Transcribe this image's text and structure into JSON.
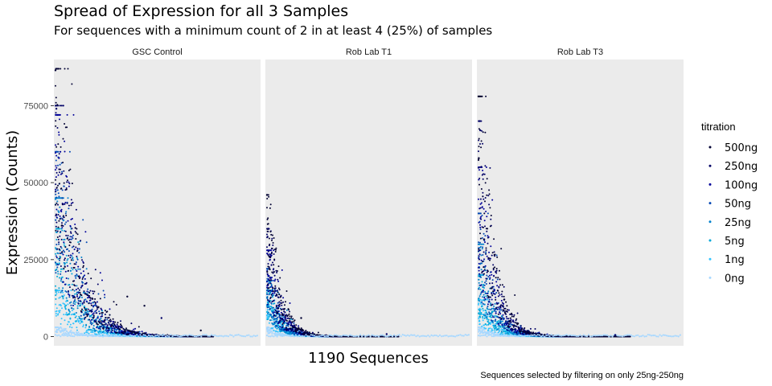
{
  "chart_data": {
    "type": "scatter",
    "title": "Spread of Expression for all 3 Samples",
    "subtitle": "For sequences with a minimum count of 2 in at least 4 (25%) of samples",
    "ylabel": "Expression (Counts)",
    "xlabel": "1190 Sequences",
    "caption": "Sequences selected by filtering on only 25ng-250ng",
    "ylim": [
      -3000,
      90000
    ],
    "xlim": [
      0,
      1190
    ],
    "y_ticks": [
      0,
      25000,
      50000,
      75000
    ],
    "y_tick_labels": [
      "0",
      "25000",
      "50000",
      "75000"
    ],
    "x_ticks_shown": false,
    "grid": false,
    "legend": {
      "title": "titration",
      "position": "right",
      "entries": [
        {
          "label": "500ng",
          "color": "#000033"
        },
        {
          "label": "250ng",
          "color": "#000066"
        },
        {
          "label": "100ng",
          "color": "#000099"
        },
        {
          "label": "50ng",
          "color": "#0047b3"
        },
        {
          "label": "25ng",
          "color": "#0080cc"
        },
        {
          "label": "5ng",
          "color": "#00a8d8"
        },
        {
          "label": "1ng",
          "color": "#33c4ff"
        },
        {
          "label": "0ng",
          "color": "#a8d8ff"
        }
      ]
    },
    "panels": [
      {
        "name": "GSC Control",
        "series_max": {
          "500ng": 87000,
          "250ng": 75000,
          "100ng": 72000,
          "50ng": 60000,
          "25ng": 45000,
          "5ng": 35000,
          "1ng": 15000,
          "0ng": 3000
        },
        "tail_extent": 0.78,
        "notable_points": [
          {
            "x": 0,
            "y": 86500,
            "series": "500ng"
          },
          {
            "x": 5,
            "y": 74000,
            "series": "250ng"
          },
          {
            "x": 20,
            "y": 58000,
            "series": "100ng"
          },
          {
            "x": 40,
            "y": 45000,
            "series": "50ng"
          },
          {
            "x": 420,
            "y": 13000,
            "series": "500ng"
          },
          {
            "x": 520,
            "y": 10000,
            "series": "500ng"
          },
          {
            "x": 620,
            "y": 6000,
            "series": "250ng"
          },
          {
            "x": 850,
            "y": 2000,
            "series": "500ng"
          }
        ]
      },
      {
        "name": "Rob Lab T1",
        "series_max": {
          "500ng": 46000,
          "250ng": 35000,
          "100ng": 28000,
          "50ng": 22000,
          "25ng": 18000,
          "5ng": 15000,
          "1ng": 10000,
          "0ng": 3000
        },
        "tail_extent": 0.65,
        "notable_points": [
          {
            "x": 0,
            "y": 46000,
            "series": "500ng"
          },
          {
            "x": 8,
            "y": 35000,
            "series": "250ng"
          },
          {
            "x": 200,
            "y": 6000,
            "series": "500ng"
          },
          {
            "x": 700,
            "y": 800,
            "series": "250ng"
          }
        ]
      },
      {
        "name": "Rob Lab T3",
        "series_max": {
          "500ng": 78000,
          "250ng": 70000,
          "100ng": 55000,
          "50ng": 40000,
          "25ng": 30000,
          "5ng": 20000,
          "1ng": 12000,
          "0ng": 3000
        },
        "tail_extent": 0.75,
        "notable_points": [
          {
            "x": 0,
            "y": 78000,
            "series": "500ng"
          },
          {
            "x": 10,
            "y": 67000,
            "series": "250ng"
          },
          {
            "x": 150,
            "y": 12000,
            "series": "500ng"
          },
          {
            "x": 800,
            "y": 500,
            "series": "250ng"
          }
        ]
      }
    ]
  }
}
